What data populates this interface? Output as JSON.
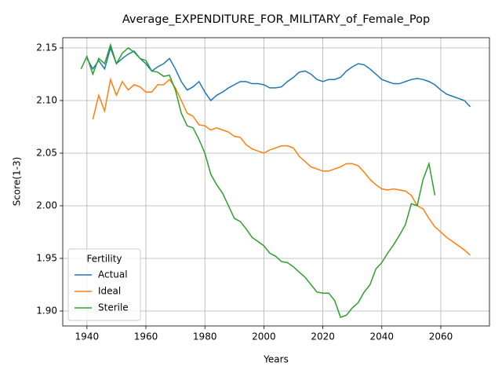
{
  "chart_data": {
    "type": "line",
    "title": "Average_EXPENDITURE_FOR_MILITARY_of_Female_Pop",
    "xlabel": "Years",
    "ylabel": "Score(1-3)",
    "x": [
      1938,
      1940,
      1942,
      1944,
      1946,
      1948,
      1950,
      1952,
      1954,
      1956,
      1958,
      1960,
      1962,
      1964,
      1966,
      1968,
      1970,
      1972,
      1974,
      1976,
      1978,
      1980,
      1982,
      1984,
      1986,
      1988,
      1990,
      1992,
      1994,
      1996,
      1998,
      2000,
      2002,
      2004,
      2006,
      2008,
      2010,
      2012,
      2014,
      2016,
      2018,
      2020,
      2022,
      2024,
      2026,
      2028,
      2030,
      2032,
      2034,
      2036,
      2038,
      2040,
      2042,
      2044,
      2046,
      2048,
      2050,
      2052,
      2054,
      2056,
      2058,
      2060,
      2062,
      2064,
      2066,
      2068,
      2070
    ],
    "series": [
      {
        "name": "Actual",
        "color": "#1f77b4",
        "values": [
          null,
          2.14,
          2.13,
          2.138,
          2.13,
          2.15,
          2.135,
          2.14,
          2.144,
          2.147,
          2.14,
          2.135,
          2.128,
          2.132,
          2.135,
          2.14,
          2.13,
          2.118,
          2.11,
          2.113,
          2.118,
          2.108,
          2.1,
          2.105,
          2.108,
          2.112,
          2.115,
          2.118,
          2.118,
          2.116,
          2.116,
          2.115,
          2.112,
          2.112,
          2.113,
          2.118,
          2.122,
          2.127,
          2.128,
          2.125,
          2.12,
          2.118,
          2.12,
          2.12,
          2.122,
          2.128,
          2.132,
          2.135,
          2.134,
          2.13,
          2.125,
          2.12,
          2.118,
          2.116,
          2.116,
          2.118,
          2.12,
          2.121,
          2.12,
          2.118,
          2.115,
          2.11,
          2.106,
          2.104,
          2.102,
          2.1,
          2.094
        ]
      },
      {
        "name": "Ideal",
        "color": "#ff7f0e",
        "values": [
          null,
          null,
          2.082,
          2.105,
          2.09,
          2.12,
          2.105,
          2.118,
          2.11,
          2.115,
          2.113,
          2.108,
          2.108,
          2.115,
          2.115,
          2.12,
          2.112,
          2.1,
          2.088,
          2.085,
          2.077,
          2.076,
          2.072,
          2.074,
          2.072,
          2.07,
          2.066,
          2.065,
          2.058,
          2.054,
          2.052,
          2.05,
          2.053,
          2.055,
          2.057,
          2.057,
          2.055,
          2.047,
          2.042,
          2.037,
          2.035,
          2.033,
          2.033,
          2.035,
          2.037,
          2.04,
          2.04,
          2.038,
          2.032,
          2.025,
          2.02,
          2.016,
          2.015,
          2.016,
          2.015,
          2.014,
          2.01,
          2.0,
          1.997,
          1.988,
          1.98,
          1.975,
          1.97,
          1.966,
          1.962,
          1.958,
          1.953
        ]
      },
      {
        "name": "Sterile",
        "color": "#2ca02c",
        "values": [
          2.13,
          2.142,
          2.125,
          2.14,
          2.135,
          2.153,
          2.135,
          2.145,
          2.15,
          2.146,
          2.14,
          2.138,
          2.128,
          2.127,
          2.123,
          2.124,
          2.11,
          2.088,
          2.076,
          2.074,
          2.063,
          2.05,
          2.03,
          2.02,
          2.012,
          2.0,
          1.988,
          1.985,
          1.978,
          1.97,
          1.966,
          1.962,
          1.955,
          1.952,
          1.947,
          1.946,
          1.942,
          1.937,
          1.932,
          1.925,
          1.918,
          1.917,
          1.917,
          1.91,
          1.894,
          1.896,
          1.903,
          1.908,
          1.918,
          1.925,
          1.94,
          1.946,
          1.955,
          1.963,
          1.972,
          1.982,
          2.002,
          2.0,
          2.025,
          2.04,
          2.01,
          null,
          null,
          null,
          null,
          null,
          null
        ]
      }
    ],
    "xlim": [
      1931.8,
      2076.5
    ],
    "ylim": [
      1.8858,
      2.1597
    ],
    "xticks": [
      1940,
      1960,
      1980,
      2000,
      2020,
      2040,
      2060
    ],
    "yticks": [
      {
        "value": 1.9,
        "label": "1.90"
      },
      1.95,
      {
        "value": 2.0,
        "label": "2.00"
      },
      2.05,
      {
        "value": 2.1,
        "label": "2.10"
      },
      2.15
    ],
    "grid": true,
    "legend": {
      "title": "Fertility",
      "loc": "lower left"
    }
  }
}
